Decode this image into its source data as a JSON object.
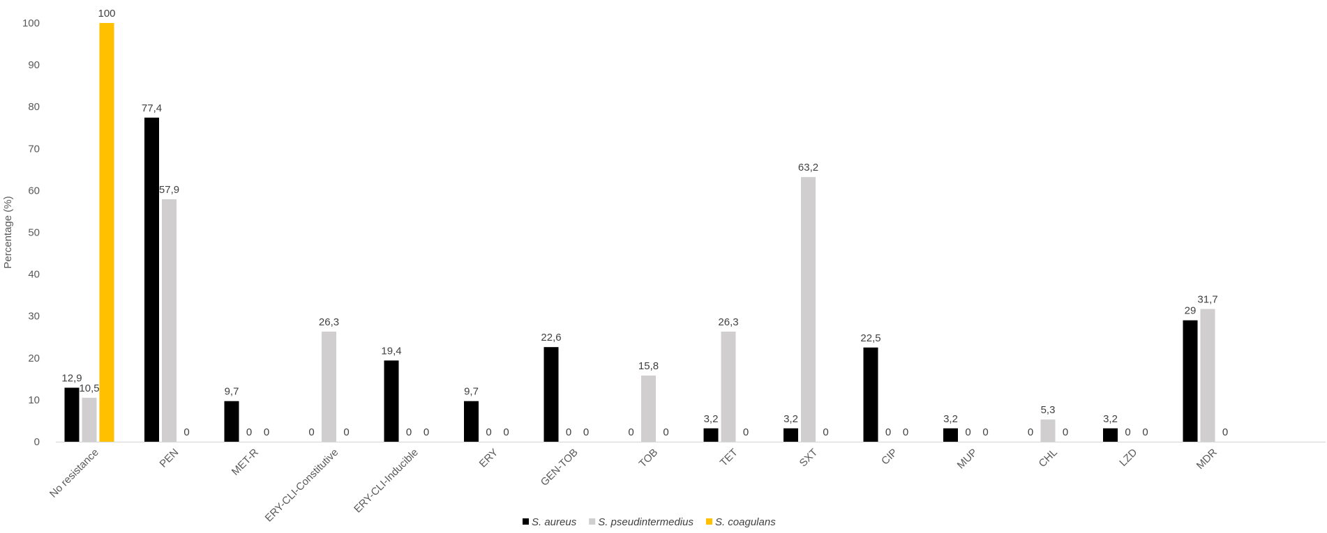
{
  "chart_data": {
    "type": "bar",
    "title": "",
    "xlabel": "",
    "ylabel": "Percentage (%)",
    "ylim": [
      0,
      100
    ],
    "yticks": [
      "0",
      "10",
      "20",
      "30",
      "40",
      "50",
      "60",
      "70",
      "80",
      "90",
      "100"
    ],
    "grid": false,
    "legend_position": "bottom",
    "categories": [
      "No resistance",
      "PEN",
      "MET-R",
      "ERY-CLI-Constitutive",
      "ERY-CLI-Inducible",
      "ERY",
      "GEN-TOB",
      "TOB",
      "TET",
      "SXT",
      "CIP",
      "MUP",
      "CHL",
      "LZD",
      "MDR"
    ],
    "series": [
      {
        "name": "S. aureus",
        "color": "#000000",
        "values": [
          12.9,
          77.4,
          9.7,
          0,
          19.4,
          9.7,
          22.6,
          0,
          3.2,
          3.2,
          22.5,
          3.2,
          0,
          3.2,
          29
        ],
        "labels": [
          "12,9",
          "77,4",
          "9,7",
          "0",
          "19,4",
          "9,7",
          "22,6",
          "0",
          "3,2",
          "3,2",
          "22,5",
          "3,2",
          "0",
          "3,2",
          "29"
        ]
      },
      {
        "name": "S. pseudintermedius",
        "color": "#d0cece",
        "values": [
          10.5,
          57.9,
          0,
          26.3,
          0,
          0,
          0,
          15.8,
          26.3,
          63.2,
          0,
          0,
          5.3,
          0,
          31.7
        ],
        "labels": [
          "10,5",
          "57,9",
          "0",
          "26,3",
          "0",
          "0",
          "0",
          "15,8",
          "26,3",
          "63,2",
          "0",
          "0",
          "5,3",
          "0",
          "31,7"
        ]
      },
      {
        "name": "S. coagulans",
        "color": "#ffc000",
        "values": [
          100,
          0,
          0,
          0,
          0,
          0,
          0,
          0,
          0,
          0,
          0,
          0,
          0,
          0,
          0
        ],
        "labels": [
          "100",
          "0",
          "0",
          "0",
          "0",
          "0",
          "0",
          "0",
          "0",
          "0",
          "0",
          "0",
          "0",
          "0",
          "0"
        ]
      }
    ]
  }
}
